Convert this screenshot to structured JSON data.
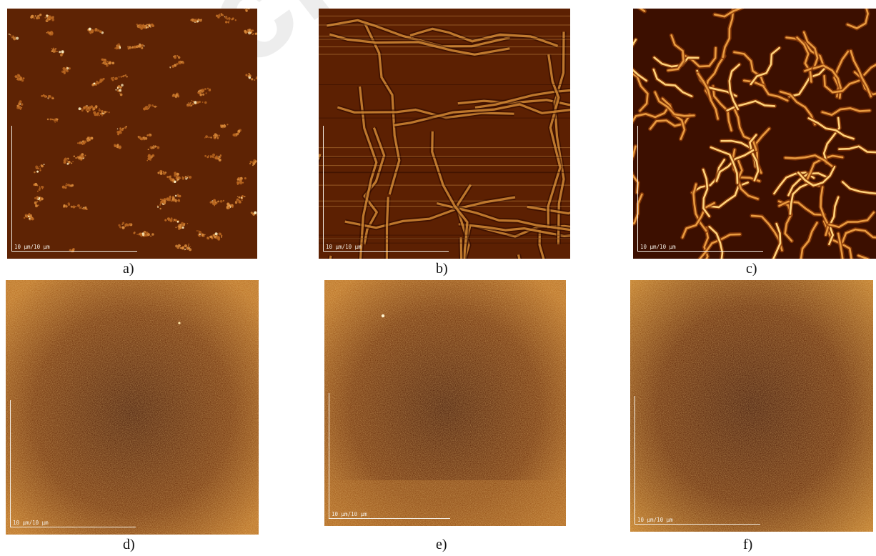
{
  "scale_label": "10 µm/10 µm",
  "watermark": "Bucketop",
  "colors": {
    "dark": "#3a0d00",
    "mid": "#8a3a08",
    "bright": "#f0b248",
    "highlight": "#fff1c8",
    "scale": "#f4efe6"
  },
  "panels": [
    {
      "caption": "a)",
      "texture": "dots"
    },
    {
      "caption": "b)",
      "texture": "streaks"
    },
    {
      "caption": "c)",
      "texture": "worms"
    },
    {
      "caption": "d)",
      "texture": "noise"
    },
    {
      "caption": "e)",
      "texture": "noise"
    },
    {
      "caption": "f)",
      "texture": "noise"
    }
  ]
}
